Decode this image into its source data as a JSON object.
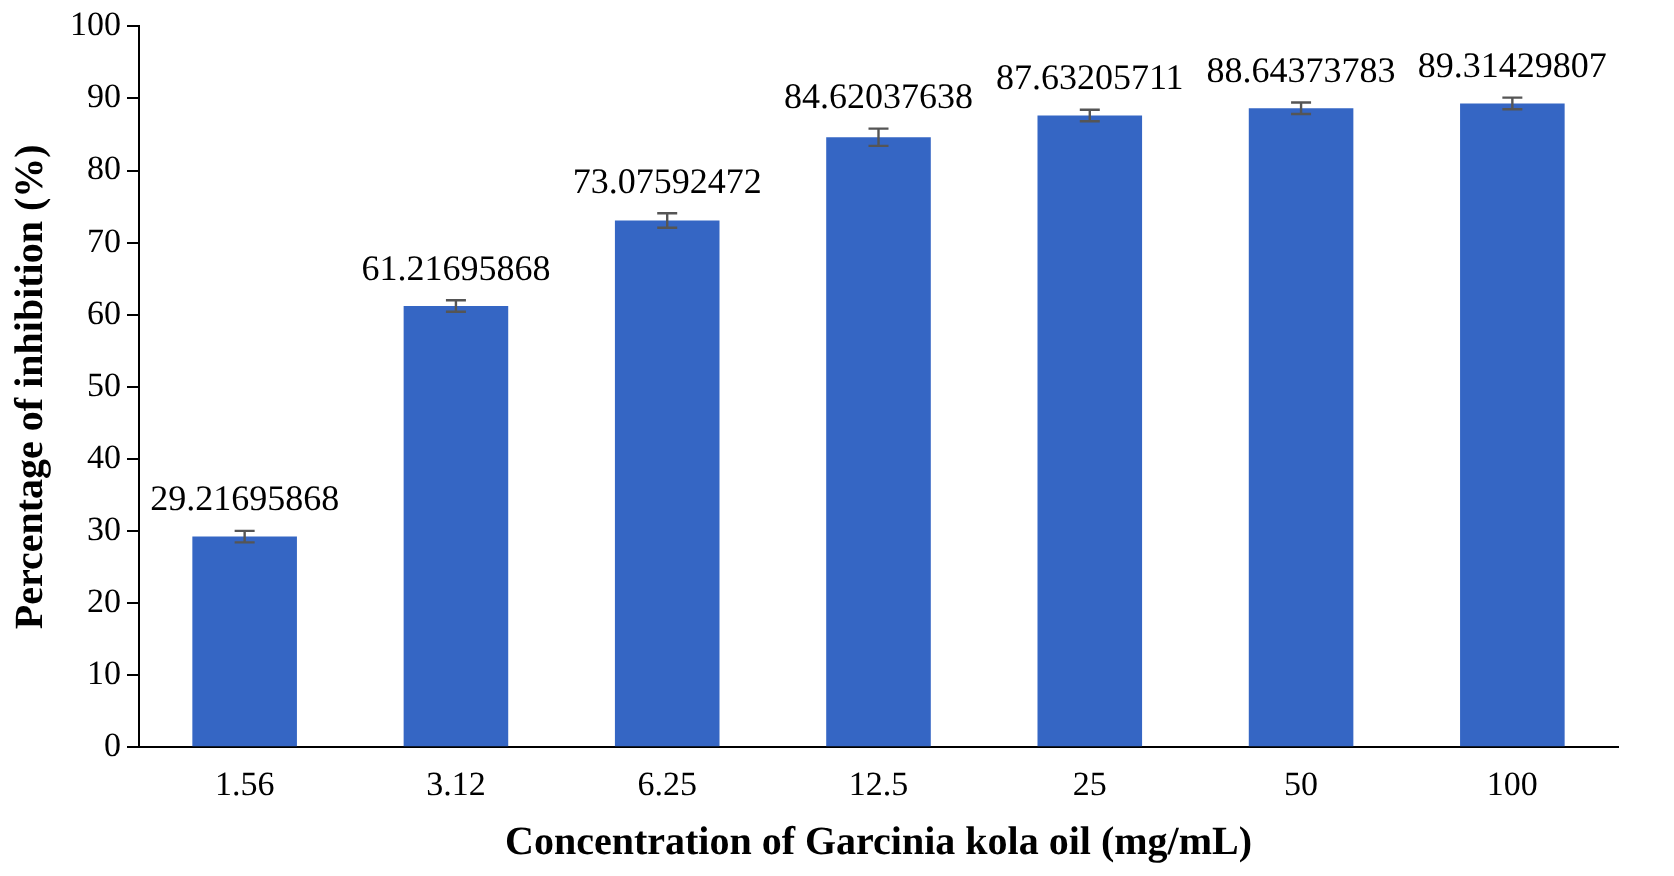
{
  "chart_data": {
    "type": "bar",
    "xlabel": "Concentration of Garcinia kola oil (mg/mL)",
    "ylabel": "Percentage of inhibition (%)",
    "categories": [
      "1.56",
      "3.12",
      "6.25",
      "12.5",
      "25",
      "50",
      "100"
    ],
    "values": [
      29.21695868,
      61.21695868,
      73.07592472,
      84.62037638,
      87.63205711,
      88.64373783,
      89.31429807
    ],
    "errors": [
      0.8,
      0.8,
      1,
      1.2,
      0.8,
      0.8,
      0.8
    ],
    "color": "#3566c4",
    "data_labels": true,
    "ylim": [
      0,
      100
    ],
    "yticks": [
      0,
      10,
      20,
      30,
      40,
      50,
      60,
      70,
      80,
      90,
      100
    ],
    "grid": false,
    "legend": false
  }
}
